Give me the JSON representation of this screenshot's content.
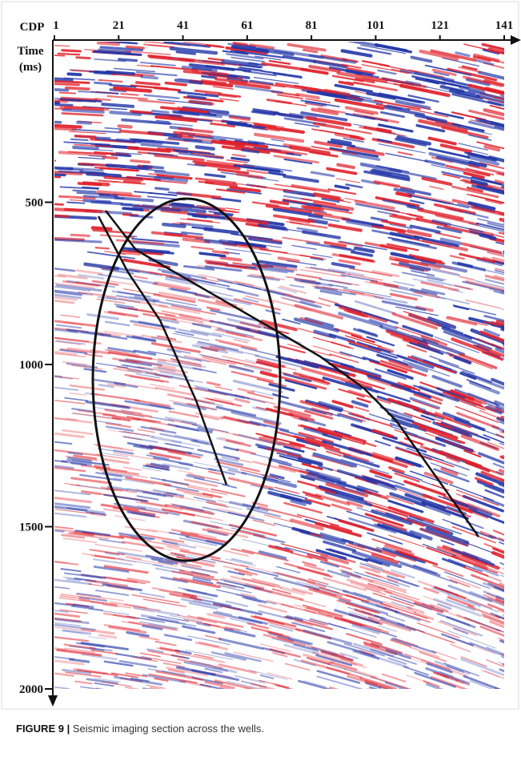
{
  "chart_data": {
    "type": "seismic",
    "x_label": "CDP",
    "y_label": [
      "Time",
      "(ms)"
    ],
    "xlim": [
      1,
      141
    ],
    "xticks": [
      1,
      21,
      41,
      61,
      81,
      101,
      121,
      141
    ],
    "ylim": [
      0,
      2000
    ],
    "yticks": [
      500,
      1000,
      1500,
      2000
    ]
  },
  "caption": {
    "label": "FIGURE 9 |",
    "text": "Seismic imaging section across the wells."
  }
}
